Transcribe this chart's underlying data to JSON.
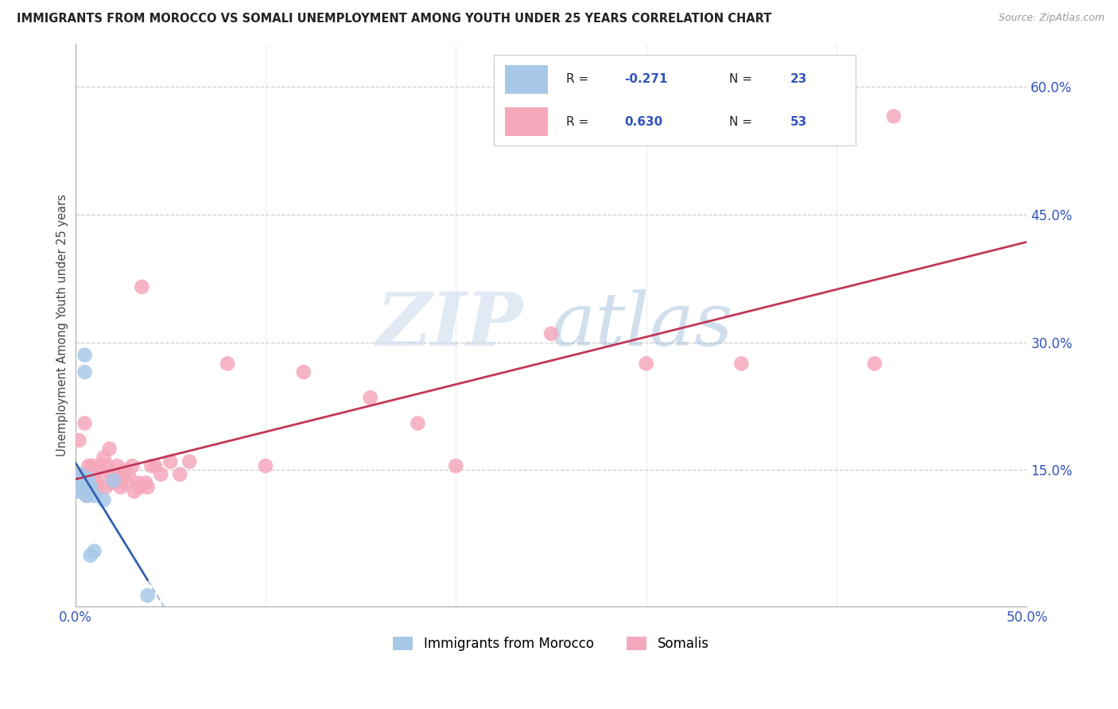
{
  "title": "IMMIGRANTS FROM MOROCCO VS SOMALI UNEMPLOYMENT AMONG YOUTH UNDER 25 YEARS CORRELATION CHART",
  "source": "Source: ZipAtlas.com",
  "ylabel": "Unemployment Among Youth under 25 years",
  "xlim": [
    0.0,
    0.5
  ],
  "ylim": [
    -0.01,
    0.65
  ],
  "xticks": [
    0.0,
    0.1,
    0.2,
    0.3,
    0.4,
    0.5
  ],
  "yticks": [
    0.15,
    0.3,
    0.45,
    0.6
  ],
  "ytick_labels": [
    "15.0%",
    "30.0%",
    "45.0%",
    "60.0%"
  ],
  "xtick_labels": [
    "0.0%",
    "",
    "",
    "",
    "",
    "50.0%"
  ],
  "morocco_color": "#a8c8e8",
  "somali_color": "#f5a8bc",
  "morocco_line_color": "#3060b0",
  "somali_line_color": "#c03858",
  "morocco_R": -0.271,
  "morocco_N": 23,
  "somali_R": 0.63,
  "somali_N": 53,
  "watermark_zip": "ZIP",
  "watermark_atlas": "atlas",
  "legend_label_morocco": "Immigrants from Morocco",
  "legend_label_somali": "Somalis",
  "morocco_x": [
    0.001,
    0.002,
    0.002,
    0.003,
    0.003,
    0.003,
    0.004,
    0.004,
    0.004,
    0.005,
    0.005,
    0.006,
    0.006,
    0.007,
    0.007,
    0.008,
    0.008,
    0.008,
    0.01,
    0.01,
    0.015,
    0.02,
    0.038
  ],
  "morocco_y": [
    0.13,
    0.135,
    0.125,
    0.13,
    0.14,
    0.145,
    0.125,
    0.13,
    0.135,
    0.285,
    0.265,
    0.135,
    0.12,
    0.14,
    0.13,
    0.13,
    0.13,
    0.05,
    0.055,
    0.12,
    0.115,
    0.138,
    0.003
  ],
  "somali_x": [
    0.002,
    0.003,
    0.004,
    0.005,
    0.005,
    0.006,
    0.007,
    0.007,
    0.008,
    0.009,
    0.01,
    0.01,
    0.012,
    0.013,
    0.013,
    0.015,
    0.016,
    0.017,
    0.018,
    0.019,
    0.02,
    0.021,
    0.022,
    0.023,
    0.024,
    0.025,
    0.026,
    0.027,
    0.028,
    0.03,
    0.031,
    0.033,
    0.034,
    0.035,
    0.037,
    0.038,
    0.04,
    0.042,
    0.045,
    0.05,
    0.055,
    0.06,
    0.08,
    0.1,
    0.12,
    0.155,
    0.18,
    0.2,
    0.25,
    0.3,
    0.35,
    0.42,
    0.43
  ],
  "somali_y": [
    0.185,
    0.125,
    0.145,
    0.145,
    0.205,
    0.12,
    0.135,
    0.155,
    0.13,
    0.155,
    0.135,
    0.145,
    0.13,
    0.145,
    0.155,
    0.165,
    0.13,
    0.155,
    0.175,
    0.145,
    0.135,
    0.145,
    0.155,
    0.14,
    0.13,
    0.145,
    0.15,
    0.135,
    0.145,
    0.155,
    0.125,
    0.135,
    0.13,
    0.365,
    0.135,
    0.13,
    0.155,
    0.155,
    0.145,
    0.16,
    0.145,
    0.16,
    0.275,
    0.155,
    0.265,
    0.235,
    0.205,
    0.155,
    0.31,
    0.275,
    0.275,
    0.275,
    0.565
  ]
}
